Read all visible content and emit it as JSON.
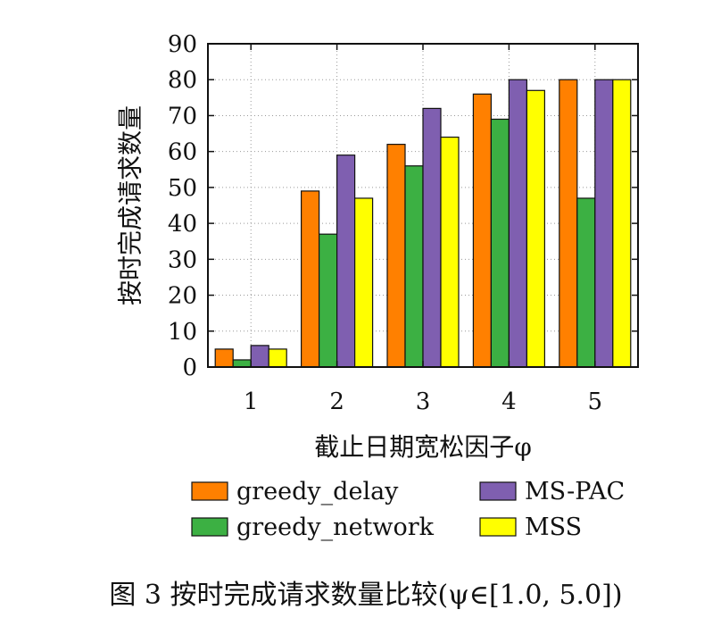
{
  "chart_data": {
    "type": "bar",
    "categories": [
      "1",
      "2",
      "3",
      "4",
      "5"
    ],
    "series": [
      {
        "name": "greedy_delay",
        "values": [
          5,
          49,
          62,
          76,
          80
        ],
        "color": "#ff8000"
      },
      {
        "name": "greedy_network",
        "values": [
          2,
          37,
          56,
          69,
          47
        ],
        "color": "#3cb043"
      },
      {
        "name": "MS-PAC",
        "values": [
          6,
          59,
          72,
          80,
          80
        ],
        "color": "#7f5fb0"
      },
      {
        "name": "MSS",
        "values": [
          5,
          47,
          64,
          77,
          80
        ],
        "color": "#ffff00"
      }
    ],
    "xlabel": "截止日期宽松因子φ",
    "ylabel": "按时完成请求数量",
    "ylim": [
      0,
      90
    ],
    "yticks": [
      0,
      10,
      20,
      30,
      40,
      50,
      60,
      70,
      80,
      90
    ],
    "grid": true,
    "legend_position": "bottom"
  },
  "caption": "图 3 按时完成请求数量比较(ψ∈[1.0, 5.0])"
}
